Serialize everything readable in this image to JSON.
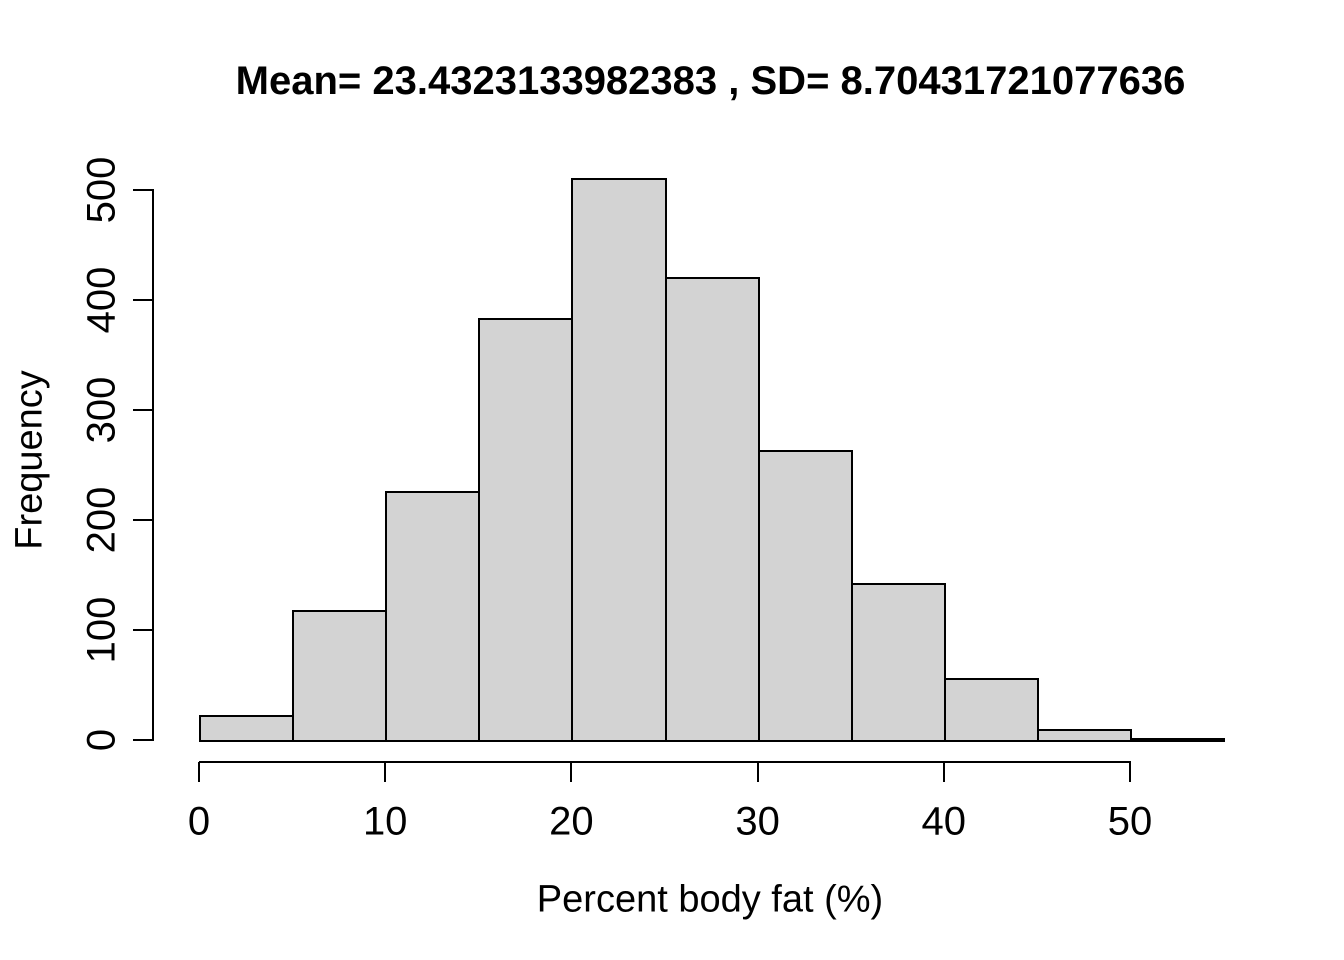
{
  "chart_data": {
    "type": "bar",
    "subtype": "histogram",
    "title": "Mean= 23.4323133982383 , SD= 8.70431721077636",
    "xlabel": "Percent body fat (%)",
    "ylabel": "Frequency",
    "bin_edges": [
      0,
      5,
      10,
      15,
      20,
      25,
      30,
      35,
      40,
      45,
      50,
      55
    ],
    "counts": [
      23,
      118,
      226,
      384,
      511,
      421,
      264,
      143,
      56,
      10,
      2
    ],
    "x_ticks": [
      0,
      10,
      20,
      30,
      40,
      50
    ],
    "y_ticks": [
      0,
      100,
      200,
      300,
      400,
      500
    ],
    "xlim": [
      0,
      55
    ],
    "ylim": [
      0,
      500
    ],
    "grid": false,
    "legend": null,
    "bar_fill": "#D3D3D3",
    "bar_stroke": "#000000",
    "axis_color": "#000000",
    "background": "#FFFFFF"
  }
}
